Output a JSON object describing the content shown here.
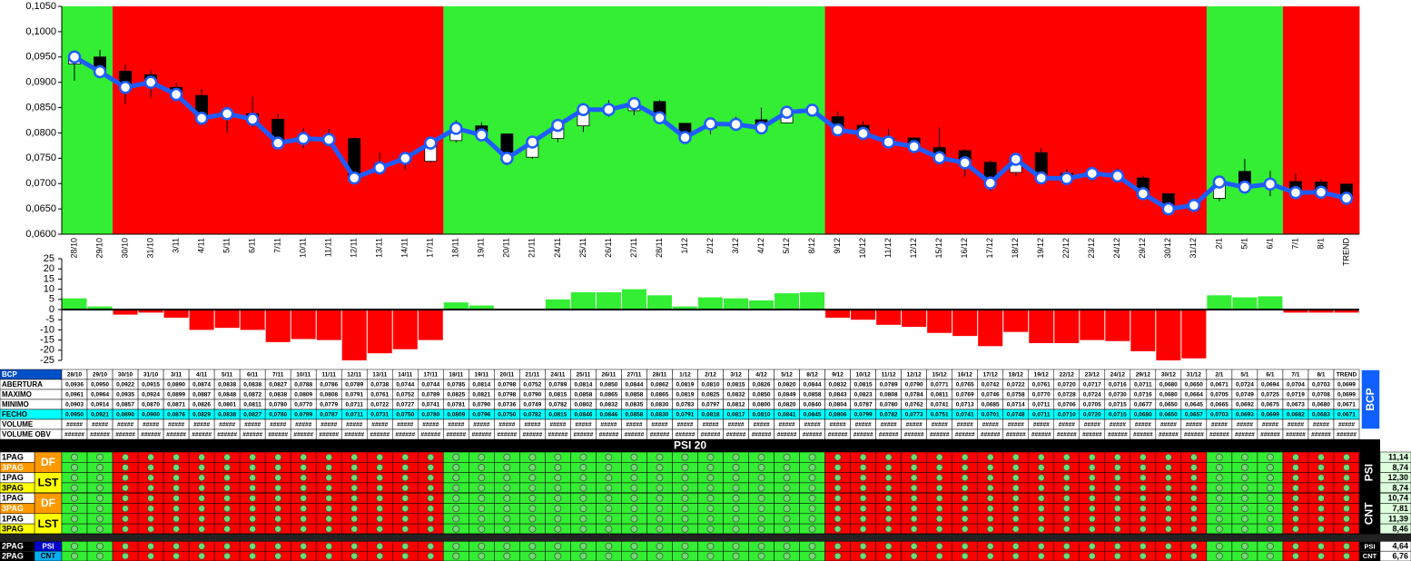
{
  "chart_data": [
    {
      "type": "candlestick",
      "categories": [
        "28/10",
        "29/10",
        "30/10",
        "31/10",
        "3/11",
        "4/11",
        "5/11",
        "6/11",
        "7/11",
        "10/11",
        "11/11",
        "12/11",
        "13/11",
        "14/11",
        "17/11",
        "18/11",
        "19/11",
        "20/11",
        "21/11",
        "24/11",
        "25/11",
        "26/11",
        "27/11",
        "28/11",
        "1/12",
        "2/12",
        "3/12",
        "4/12",
        "5/12",
        "8/12",
        "9/12",
        "10/12",
        "11/12",
        "12/12",
        "15/12",
        "16/12",
        "17/12",
        "18/12",
        "19/12",
        "22/12",
        "23/12",
        "24/12",
        "29/12",
        "30/12",
        "31/12",
        "2/1",
        "5/1",
        "6/1",
        "7/1",
        "8/1",
        "TREND"
      ],
      "series": [
        {
          "name": "ABERTURA",
          "values": [
            0.0936,
            0.095,
            0.0922,
            0.0915,
            0.089,
            0.0874,
            0.0838,
            0.0838,
            0.0827,
            0.0788,
            0.0786,
            0.0789,
            0.0738,
            0.0744,
            0.0744,
            0.0785,
            0.0814,
            0.0798,
            0.0752,
            0.0789,
            0.0814,
            0.085,
            0.0844,
            0.0862,
            0.0819,
            0.081,
            0.0815,
            0.0826,
            0.082,
            0.0844,
            0.0832,
            0.0815,
            0.0789,
            0.079,
            0.0771,
            0.0765,
            0.0742,
            0.0722,
            0.0761,
            0.072,
            0.0717,
            0.0716,
            0.0711,
            0.068,
            0.065,
            0.0671,
            0.0724,
            0.0694,
            0.0704,
            0.0703,
            0.0699
          ],
          "value_labels": [
            "0,0936",
            "0,0950",
            "0,0922",
            "0,0915",
            "0,0890",
            "0,0874",
            "0,0838",
            "0,0838",
            "0,0827",
            "0,0788",
            "0,0786",
            "0,0789",
            "0,0738",
            "0,0744",
            "0,0744",
            "0,0785",
            "0,0814",
            "0,0798",
            "0,0752",
            "0,0789",
            "0,0814",
            "0,0850",
            "0,0844",
            "0,0862",
            "0,0819",
            "0,0810",
            "0,0815",
            "0,0826",
            "0,0820",
            "0,0844",
            "0,0832",
            "0,0815",
            "0,0789",
            "0,0790",
            "0,0771",
            "0,0765",
            "0,0742",
            "0,0722",
            "0,0761",
            "0,0720",
            "0,0717",
            "0,0716",
            "0,0711",
            "0,0680",
            "0,0650",
            "0,0671",
            "0,0724",
            "0,0694",
            "0,0704",
            "0,0703",
            "0,0699"
          ]
        },
        {
          "name": "MAXIMO",
          "values": [
            0.0961,
            0.0964,
            0.0935,
            0.0924,
            0.0899,
            0.0887,
            0.0848,
            0.0872,
            0.0838,
            0.0809,
            0.0808,
            0.0791,
            0.0761,
            0.0752,
            0.0789,
            0.0825,
            0.0821,
            0.0798,
            0.079,
            0.0815,
            0.0858,
            0.0865,
            0.0858,
            0.0865,
            0.0819,
            0.0825,
            0.0832,
            0.085,
            0.0849,
            0.0858,
            0.0843,
            0.0823,
            0.0808,
            0.0784,
            0.0811,
            0.0769,
            0.0746,
            0.0758,
            0.077,
            0.0728,
            0.0724,
            0.073,
            0.0716,
            0.068,
            0.0664,
            0.0705,
            0.0749,
            0.0725,
            0.0719,
            0.0708,
            0.0699
          ],
          "value_labels": [
            "0,0961",
            "0,0964",
            "0,0935",
            "0,0924",
            "0,0899",
            "0,0887",
            "0,0848",
            "0,0872",
            "0,0838",
            "0,0809",
            "0,0808",
            "0,0791",
            "0,0761",
            "0,0752",
            "0,0789",
            "0,0825",
            "0,0821",
            "0,0798",
            "0,0790",
            "0,0815",
            "0,0858",
            "0,0865",
            "0,0858",
            "0,0865",
            "0,0819",
            "0,0825",
            "0,0832",
            "0,0850",
            "0,0849",
            "0,0858",
            "0,0843",
            "0,0823",
            "0,0808",
            "0,0784",
            "0,0811",
            "0,0769",
            "0,0746",
            "0,0758",
            "0,0770",
            "0,0728",
            "0,0724",
            "0,0730",
            "0,0716",
            "0,0680",
            "0,0664",
            "0,0705",
            "0,0749",
            "0,0725",
            "0,0719",
            "0,0708",
            "0,0699"
          ]
        },
        {
          "name": "MINIMO",
          "values": [
            0.0903,
            0.0914,
            0.0857,
            0.087,
            0.0871,
            0.0826,
            0.0801,
            0.0811,
            0.078,
            0.077,
            0.0779,
            0.0711,
            0.0722,
            0.0727,
            0.0741,
            0.0781,
            0.079,
            0.0736,
            0.0749,
            0.0782,
            0.0802,
            0.0832,
            0.0835,
            0.083,
            0.0783,
            0.0797,
            0.0812,
            0.08,
            0.082,
            0.084,
            0.0804,
            0.0787,
            0.078,
            0.0762,
            0.0741,
            0.0713,
            0.0685,
            0.0714,
            0.0711,
            0.0706,
            0.0705,
            0.0715,
            0.0677,
            0.065,
            0.0645,
            0.0665,
            0.0692,
            0.0675,
            0.0673,
            0.068,
            0.0671
          ],
          "value_labels": [
            "0,0903",
            "0,0914",
            "0,0857",
            "0,0870",
            "0,0871",
            "0,0826",
            "0,0801",
            "0,0811",
            "0,0780",
            "0,0770",
            "0,0779",
            "0,0711",
            "0,0722",
            "0,0727",
            "0,0741",
            "0,0781",
            "0,0790",
            "0,0736",
            "0,0749",
            "0,0782",
            "0,0802",
            "0,0832",
            "0,0835",
            "0,0830",
            "0,0783",
            "0,0797",
            "0,0812",
            "0,0800",
            "0,0820",
            "0,0840",
            "0,0804",
            "0,0787",
            "0,0780",
            "0,0762",
            "0,0741",
            "0,0713",
            "0,0685",
            "0,0714",
            "0,0711",
            "0,0706",
            "0,0705",
            "0,0715",
            "0,0677",
            "0,0650",
            "0,0645",
            "0,0665",
            "0,0692",
            "0,0675",
            "0,0673",
            "0,0680",
            "0,0671"
          ]
        },
        {
          "name": "FECHO",
          "color": "#1f5cff",
          "values": [
            0.095,
            0.0921,
            0.089,
            0.09,
            0.0876,
            0.0829,
            0.0838,
            0.0827,
            0.078,
            0.0789,
            0.0787,
            0.0711,
            0.0731,
            0.075,
            0.078,
            0.0809,
            0.0796,
            0.075,
            0.0782,
            0.0815,
            0.0846,
            0.0846,
            0.0858,
            0.083,
            0.0791,
            0.0818,
            0.0817,
            0.081,
            0.0841,
            0.0845,
            0.0806,
            0.0799,
            0.0782,
            0.0773,
            0.0751,
            0.0741,
            0.0701,
            0.0748,
            0.0711,
            0.071,
            0.072,
            0.0715,
            0.068,
            0.065,
            0.0657,
            0.0703,
            0.0693,
            0.0699,
            0.0682,
            0.0683,
            0.0671
          ],
          "value_labels": [
            "0,0950",
            "0,0921",
            "0,0890",
            "0,0900",
            "0,0876",
            "0,0829",
            "0,0838",
            "0,0827",
            "0,0780",
            "0,0789",
            "0,0787",
            "0,0711",
            "0,0731",
            "0,0750",
            "0,0780",
            "0,0809",
            "0,0796",
            "0,0750",
            "0,0782",
            "0,0815",
            "0,0846",
            "0,0846",
            "0,0858",
            "0,0830",
            "0,0791",
            "0,0818",
            "0,0817",
            "0,0810",
            "0,0841",
            "0,0845",
            "0,0806",
            "0,0799",
            "0,0782",
            "0,0773",
            "0,0751",
            "0,0741",
            "0,0701",
            "0,0748",
            "0,0711",
            "0,0710",
            "0,0720",
            "0,0715",
            "0,0680",
            "0,0650",
            "0,0657",
            "0,0703",
            "0,0693",
            "0,0699",
            "0,0682",
            "0,0683",
            "0,0671"
          ]
        }
      ],
      "backgrounds": [
        "#33ee33",
        "#33ee33",
        "#ff0000",
        "#ff0000",
        "#ff0000",
        "#ff0000",
        "#ff0000",
        "#ff0000",
        "#ff0000",
        "#ff0000",
        "#ff0000",
        "#ff0000",
        "#ff0000",
        "#ff0000",
        "#ff0000",
        "#33ee33",
        "#33ee33",
        "#33ee33",
        "#33ee33",
        "#33ee33",
        "#33ee33",
        "#33ee33",
        "#33ee33",
        "#33ee33",
        "#33ee33",
        "#33ee33",
        "#33ee33",
        "#33ee33",
        "#33ee33",
        "#33ee33",
        "#ff0000",
        "#ff0000",
        "#ff0000",
        "#ff0000",
        "#ff0000",
        "#ff0000",
        "#ff0000",
        "#ff0000",
        "#ff0000",
        "#ff0000",
        "#ff0000",
        "#ff0000",
        "#ff0000",
        "#ff0000",
        "#ff0000",
        "#33ee33",
        "#33ee33",
        "#33ee33",
        "#ff0000",
        "#ff0000",
        "#ff0000"
      ],
      "ylim": [
        0.06,
        0.105
      ],
      "yticks": [
        {
          "value": 0.06,
          "label": "0,0600"
        },
        {
          "value": 0.065,
          "label": "0,0650"
        },
        {
          "value": 0.07,
          "label": "0,0700"
        },
        {
          "value": 0.075,
          "label": "0,0750"
        },
        {
          "value": 0.08,
          "label": "0,0800"
        },
        {
          "value": 0.085,
          "label": "0,0850"
        },
        {
          "value": 0.09,
          "label": "0,0900"
        },
        {
          "value": 0.095,
          "label": "0,0950"
        },
        {
          "value": 0.1,
          "label": "0,1000"
        },
        {
          "value": 0.105,
          "label": "0,1050"
        }
      ]
    },
    {
      "type": "bar",
      "values": [
        5.5,
        1.5,
        -2.5,
        -1.5,
        -4,
        -10,
        -9,
        -10,
        -16,
        -14.5,
        -15,
        -25,
        -21.5,
        -19.5,
        -15,
        3.5,
        2,
        0,
        0,
        5,
        8.5,
        8.5,
        10,
        7,
        1.5,
        6,
        5.5,
        4.5,
        8,
        8.5,
        -4,
        -5,
        -7.5,
        -8.5,
        -11.5,
        -13,
        -18,
        -11,
        -16.5,
        -16.5,
        -15,
        -15.5,
        -20.5,
        -25,
        -24,
        7,
        6,
        6.5,
        -1.5,
        -1.5,
        -1.5
      ],
      "positive_color": "#33ee33",
      "negative_color": "#ff0000",
      "ylim": [
        -25,
        25
      ],
      "yticks": [
        25,
        20,
        15,
        10,
        5,
        0,
        -5,
        -10,
        -15,
        -20,
        -25
      ]
    }
  ],
  "table": {
    "label": "BCP",
    "button": "BCP",
    "volume": {
      "label": "VOLUME",
      "cells": [
        "#####",
        "#####",
        "#####",
        "#####",
        "#####",
        "#####",
        "#####",
        "#####",
        "#####",
        "#####",
        "#####",
        "#####",
        "#####",
        "#####",
        "#####",
        "#####",
        "#####",
        "#####",
        "#####",
        "#####",
        "#####",
        "#####",
        "#####",
        "#####",
        "#####",
        "#####",
        "#####",
        "#####",
        "#####",
        "#####",
        "#####",
        "#####",
        "#####",
        "#####",
        "#####",
        "#####",
        "#####",
        "#####",
        "#####",
        "#####",
        "#####",
        "#####",
        "#####",
        "#####",
        "#####",
        "#####",
        "#####",
        "#####",
        "#####",
        "#####",
        "#####"
      ]
    },
    "obv": {
      "label": "VOLUME OBV",
      "cells": [
        "######",
        "######",
        "######",
        "######",
        "######",
        "######",
        "######",
        "######",
        "######",
        "######",
        "######",
        "######",
        "######",
        "######",
        "######",
        "######",
        "######",
        "######",
        "######",
        "######",
        "######",
        "######",
        "######",
        "######",
        "######",
        "######",
        "######",
        "######",
        "######",
        "######",
        "######",
        "######",
        "######",
        "######",
        "######",
        "######",
        "######",
        "######",
        "######",
        "######",
        "######",
        "######",
        "######",
        "######",
        "######",
        "######",
        "######",
        "######",
        "######",
        "######",
        "######"
      ]
    }
  },
  "signals": {
    "title": "PSI 20",
    "groups": [
      {
        "name": "PSI",
        "pairs": [
          {
            "tag": "DF",
            "rows": [
              {
                "label": "1PAG",
                "value": "11,14"
              },
              {
                "label": "3PAG",
                "value": "8,74"
              }
            ]
          },
          {
            "tag": "LST",
            "rows": [
              {
                "label": "1PAG",
                "value": "12,30"
              },
              {
                "label": "3PAG",
                "value": "8,74"
              }
            ]
          }
        ]
      },
      {
        "name": "CNT",
        "pairs": [
          {
            "tag": "DF",
            "rows": [
              {
                "label": "1PAG",
                "value": "10,74"
              },
              {
                "label": "3PAG",
                "value": "7,81"
              }
            ]
          },
          {
            "tag": "LST",
            "rows": [
              {
                "label": "1PAG",
                "value": "11,39"
              },
              {
                "label": "3PAG",
                "value": "8,46"
              }
            ]
          }
        ]
      }
    ],
    "summary": [
      {
        "label": "2PAG",
        "tag": "PSI",
        "end": "PSI",
        "value": "4,64"
      },
      {
        "label": "2PAG",
        "tag": "CNT",
        "end": "CNT",
        "value": "6,76"
      }
    ]
  }
}
